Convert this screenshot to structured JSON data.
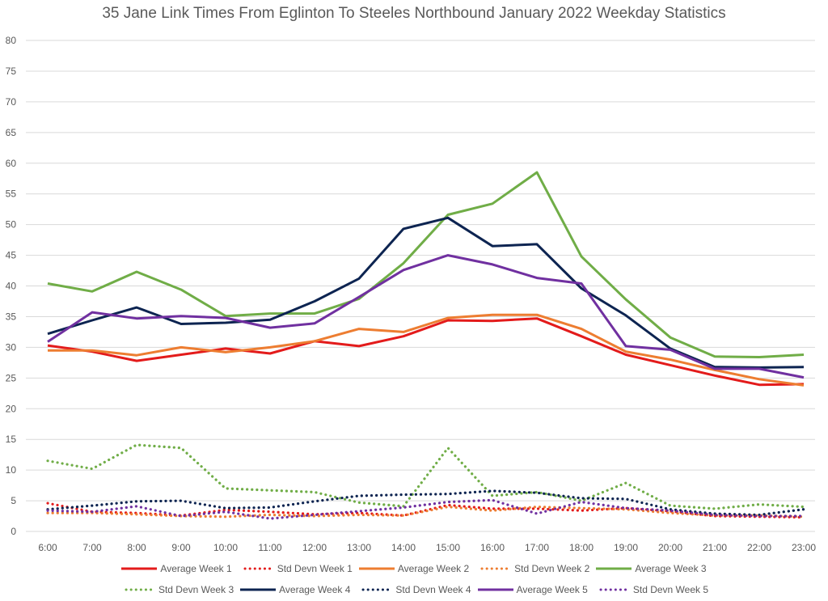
{
  "chart_data": {
    "type": "line",
    "title": "35 Jane Link Times From Eglinton To Steeles Northbound January 2022 Weekday Statistics",
    "xlabel": "",
    "ylabel": "",
    "ylim": [
      0,
      80
    ],
    "yticks": [
      0,
      5,
      10,
      15,
      20,
      25,
      30,
      35,
      40,
      45,
      50,
      55,
      60,
      65,
      70,
      75,
      80
    ],
    "grid": true,
    "legend_position": "bottom",
    "categories": [
      "6:00",
      "7:00",
      "8:00",
      "9:00",
      "10:00",
      "11:00",
      "12:00",
      "13:00",
      "14:00",
      "15:00",
      "16:00",
      "17:00",
      "18:00",
      "19:00",
      "20:00",
      "21:00",
      "22:00",
      "23:00"
    ],
    "series": [
      {
        "name": "Average Week 1",
        "style": "solid",
        "color": "#e31b1b",
        "values": [
          30.3,
          29.3,
          27.8,
          28.8,
          29.8,
          29.0,
          31.0,
          30.2,
          31.8,
          34.4,
          34.3,
          34.7,
          31.8,
          28.8,
          27.1,
          25.4,
          23.9,
          24.0
        ]
      },
      {
        "name": "Std Devn Week 1",
        "style": "dotted",
        "color": "#e31b1b",
        "values": [
          4.6,
          3.2,
          3.0,
          2.6,
          3.5,
          3.2,
          2.8,
          3.0,
          2.6,
          4.3,
          3.7,
          3.7,
          3.4,
          3.8,
          3.3,
          2.5,
          2.4,
          2.3
        ]
      },
      {
        "name": "Average Week 2",
        "style": "solid",
        "color": "#ed7d31",
        "values": [
          29.5,
          29.5,
          28.7,
          30.0,
          29.2,
          30.0,
          31.0,
          33.0,
          32.5,
          34.8,
          35.3,
          35.3,
          33.0,
          29.3,
          28.0,
          26.3,
          24.8,
          23.8
        ]
      },
      {
        "name": "Std Devn Week 2",
        "style": "dotted",
        "color": "#ed7d31",
        "values": [
          3.0,
          3.0,
          2.8,
          2.5,
          2.4,
          2.7,
          2.5,
          2.7,
          2.6,
          4.0,
          3.4,
          4.0,
          3.8,
          3.6,
          3.0,
          2.6,
          2.6,
          2.4
        ]
      },
      {
        "name": "Average Week 3",
        "style": "solid",
        "color": "#70ad47",
        "values": [
          40.4,
          39.1,
          42.3,
          39.4,
          35.1,
          35.5,
          35.5,
          37.9,
          43.7,
          51.6,
          53.4,
          58.5,
          44.8,
          37.8,
          31.6,
          28.5,
          28.4,
          28.8
        ]
      },
      {
        "name": "Std Devn Week 3",
        "style": "dotted",
        "color": "#70ad47",
        "values": [
          11.5,
          10.2,
          14.1,
          13.6,
          7.0,
          6.7,
          6.4,
          4.7,
          4.1,
          13.6,
          5.8,
          6.4,
          5.0,
          7.9,
          4.2,
          3.7,
          4.4,
          4.0
        ]
      },
      {
        "name": "Average Week 4",
        "style": "solid",
        "color": "#0d2451",
        "values": [
          32.2,
          34.4,
          36.5,
          33.8,
          34.0,
          34.5,
          37.5,
          41.2,
          49.3,
          51.1,
          46.5,
          46.8,
          39.6,
          35.2,
          29.8,
          26.8,
          26.7,
          26.8
        ]
      },
      {
        "name": "Std Devn Week 4",
        "style": "dotted",
        "color": "#0d2451",
        "values": [
          3.6,
          4.2,
          4.9,
          5.0,
          3.8,
          3.9,
          4.9,
          5.8,
          6.0,
          6.1,
          6.6,
          6.3,
          5.4,
          5.3,
          3.6,
          2.9,
          2.7,
          3.6
        ]
      },
      {
        "name": "Average Week 5",
        "style": "solid",
        "color": "#7030a0",
        "values": [
          30.9,
          35.7,
          34.7,
          35.1,
          34.8,
          33.2,
          33.9,
          38.2,
          42.6,
          45.0,
          43.5,
          41.3,
          40.4,
          30.2,
          29.6,
          26.5,
          26.5,
          25.1
        ]
      },
      {
        "name": "Std Devn Week 5",
        "style": "dotted",
        "color": "#7030a0",
        "values": [
          3.4,
          3.2,
          4.1,
          2.5,
          3.2,
          2.1,
          2.7,
          3.3,
          3.9,
          4.8,
          5.1,
          2.9,
          4.8,
          3.8,
          3.4,
          2.7,
          2.5,
          2.5
        ]
      }
    ]
  }
}
